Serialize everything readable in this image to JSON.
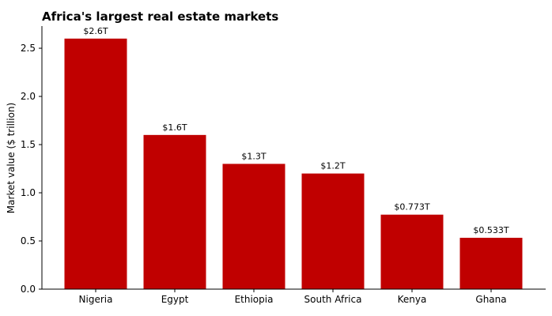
{
  "chart_data": {
    "type": "bar",
    "title": "Africa's largest real estate markets",
    "xlabel": "",
    "ylabel": "Market value ($ trillion)",
    "categories": [
      "Nigeria",
      "Egypt",
      "Ethiopia",
      "South Africa",
      "Kenya",
      "Ghana"
    ],
    "values": [
      2.6,
      1.6,
      1.3,
      1.2,
      0.773,
      0.533
    ],
    "data_labels": [
      "$2.6T",
      "$1.6T",
      "$1.3T",
      "$1.2T",
      "$0.773T",
      "$0.533T"
    ],
    "ylim": [
      0,
      2.73
    ],
    "yticks": [
      0.0,
      0.5,
      1.0,
      1.5,
      2.0,
      2.5
    ],
    "ytick_labels": [
      "0.0",
      "0.5",
      "1.0",
      "1.5",
      "2.0",
      "2.5"
    ],
    "grid": false,
    "legend": "none",
    "bar_color": "#c00000"
  }
}
